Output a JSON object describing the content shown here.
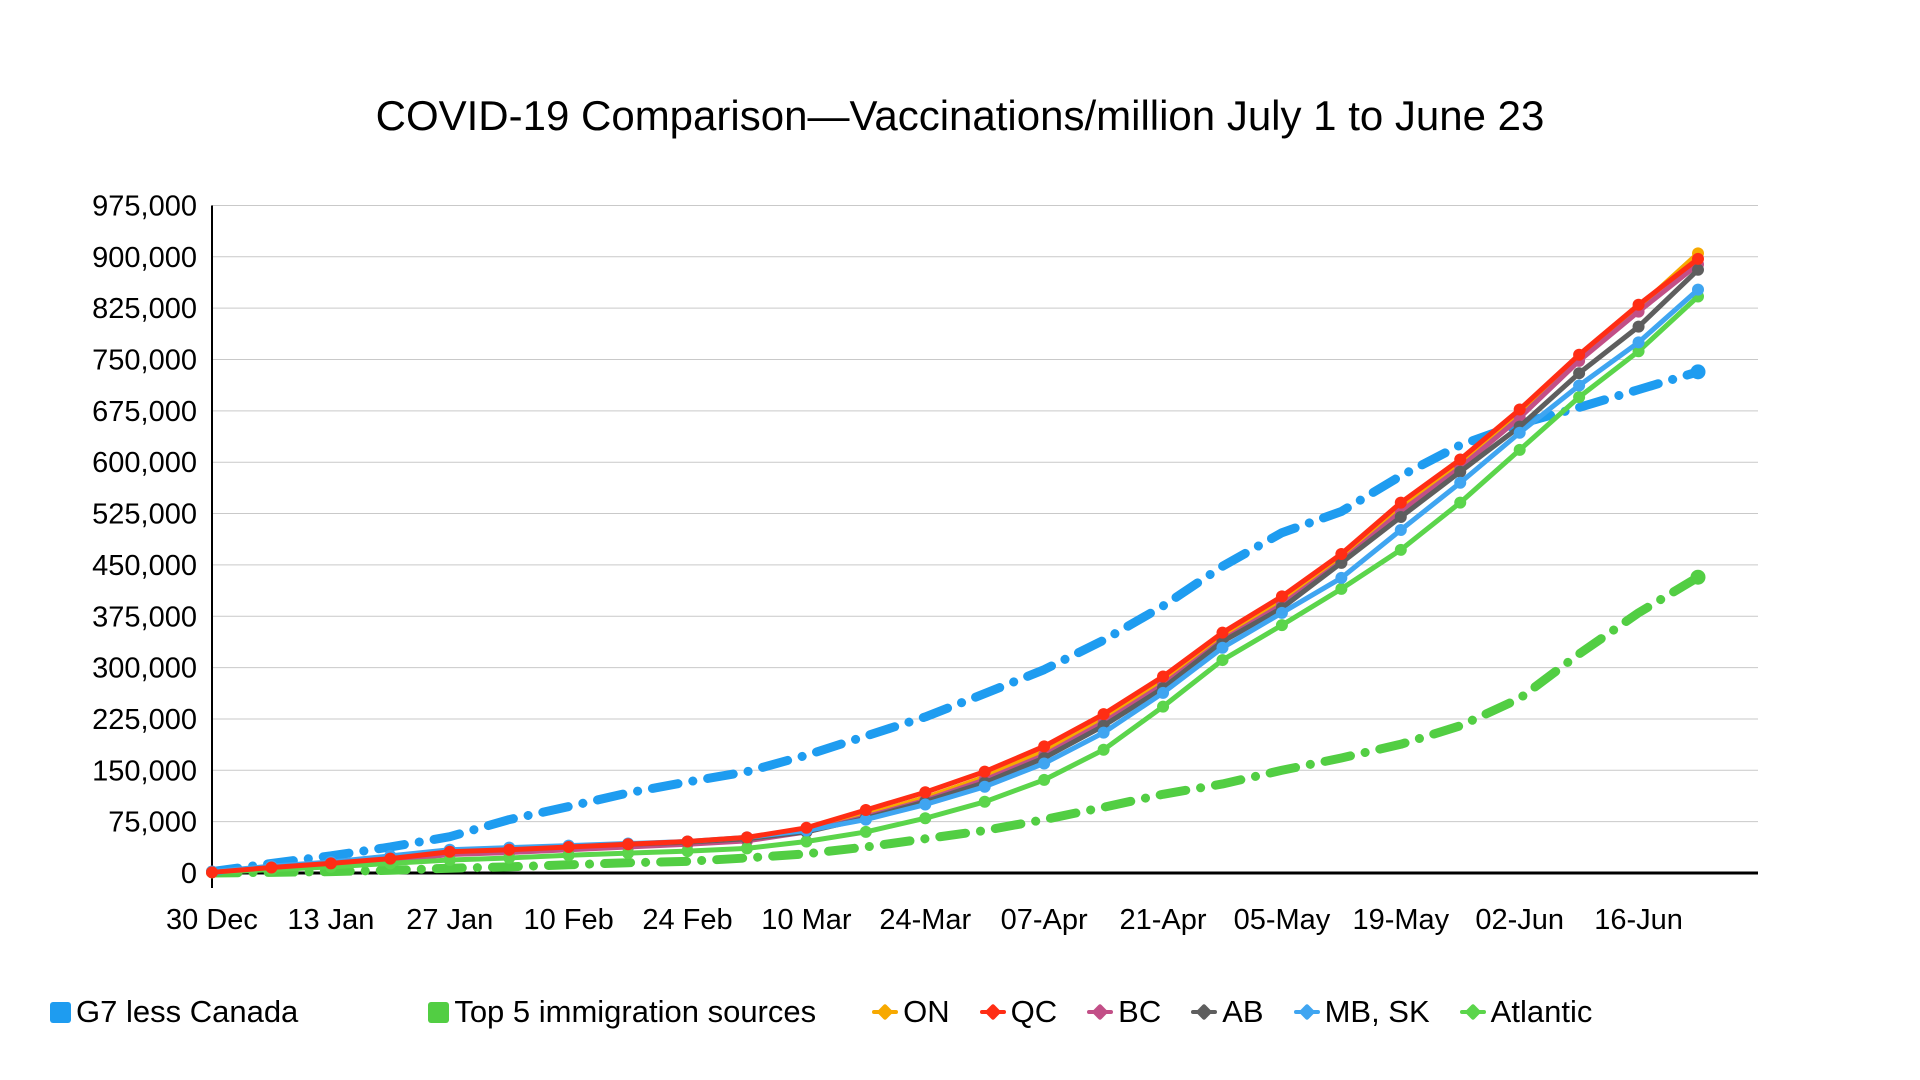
{
  "chart_data": {
    "type": "line",
    "title": "COVID-19 Comparison—Vaccinations/million July 1 to June 23",
    "grid": "horizontal",
    "legend_position": "bottom",
    "ylim": [
      0,
      975000
    ],
    "y_tick_step": 75000,
    "y_tick_labels": [
      "975,000",
      "900,000",
      "825,000",
      "750,000",
      "675,000",
      "600,000",
      "525,000",
      "450,000",
      "375,000",
      "300,000",
      "225,000",
      "150,000",
      "75,000",
      "0"
    ],
    "x_axis_tick_labels": [
      "30 Dec",
      "13 Jan",
      "27 Jan",
      "10 Feb",
      "24 Feb",
      "10 Mar",
      "24-Mar",
      "07-Apr",
      "21-Apr",
      "05-May",
      "19-May",
      "02-Jun",
      "16-Jun"
    ],
    "x_weeks": [
      "30 Dec",
      "6 Jan",
      "13 Jan",
      "20 Jan",
      "27 Jan",
      "3 Feb",
      "10 Feb",
      "17 Feb",
      "24 Feb",
      "3 Mar",
      "10 Mar",
      "17 Mar",
      "24 Mar",
      "31 Mar",
      "7 Apr",
      "14 Apr",
      "21 Apr",
      "28 Apr",
      "5 May",
      "12 May",
      "19 May",
      "26 May",
      "2 Jun",
      "9 Jun",
      "16 Jun",
      "23 Jun"
    ],
    "series": [
      {
        "name": "G7 less Canada",
        "color": "#1E9CF0",
        "style": "dashed",
        "swatch": "square",
        "z": 1,
        "values": [
          2000,
          14000,
          25000,
          38000,
          53000,
          78000,
          97000,
          117000,
          133000,
          148000,
          172000,
          200000,
          228000,
          262000,
          297000,
          340000,
          390000,
          448000,
          497000,
          528000,
          580000,
          625000,
          656000,
          680000,
          706000,
          732000
        ]
      },
      {
        "name": "Top 5 immigration sources",
        "color": "#52CE43",
        "style": "dashed",
        "swatch": "square",
        "z": 0,
        "values": [
          0,
          1000,
          2000,
          4000,
          7000,
          9000,
          12000,
          15000,
          17000,
          22000,
          28000,
          38000,
          50000,
          62000,
          78000,
          96000,
          115000,
          130000,
          150000,
          168000,
          188000,
          215000,
          255000,
          320000,
          380000,
          432000
        ]
      },
      {
        "name": "ON",
        "color": "#F7A900",
        "style": "solid",
        "swatch": "diamond",
        "z": 2,
        "values": [
          1000,
          8000,
          13000,
          20000,
          29000,
          32000,
          36000,
          40000,
          44000,
          49000,
          62000,
          85000,
          110000,
          140000,
          178000,
          226000,
          280000,
          344000,
          396000,
          458000,
          532000,
          597000,
          670000,
          752000,
          826000,
          905000
        ]
      },
      {
        "name": "QC",
        "color": "#FF2D14",
        "style": "solid",
        "swatch": "diamond",
        "z": 7,
        "values": [
          1000,
          8000,
          14000,
          21000,
          31000,
          34000,
          38000,
          42000,
          46000,
          52000,
          66000,
          92000,
          118000,
          148000,
          185000,
          232000,
          287000,
          351000,
          404000,
          466000,
          541000,
          604000,
          677000,
          757000,
          830000,
          897000
        ]
      },
      {
        "name": "BC",
        "color": "#C24F87",
        "style": "solid",
        "swatch": "diamond",
        "z": 3,
        "values": [
          1000,
          7000,
          12000,
          18000,
          27000,
          30000,
          34000,
          38000,
          42000,
          47000,
          60000,
          82000,
          106000,
          136000,
          172000,
          220000,
          275000,
          340000,
          392000,
          455000,
          528000,
          592000,
          665000,
          748000,
          820000,
          889000
        ]
      },
      {
        "name": "AB",
        "color": "#5E5E5E",
        "style": "solid",
        "swatch": "diamond",
        "z": 4,
        "values": [
          2000,
          9000,
          15000,
          23000,
          33000,
          36000,
          39000,
          42000,
          45000,
          50000,
          60000,
          80000,
          104000,
          132000,
          168000,
          215000,
          270000,
          338000,
          387000,
          453000,
          520000,
          586000,
          652000,
          730000,
          798000,
          881000
        ]
      },
      {
        "name": "MB, SK",
        "color": "#3FA5F1",
        "style": "solid",
        "swatch": "diamond",
        "z": 6,
        "values": [
          2000,
          10000,
          16000,
          25000,
          34000,
          37000,
          40000,
          43000,
          46000,
          52000,
          62000,
          78000,
          100000,
          126000,
          160000,
          205000,
          263000,
          329000,
          380000,
          431000,
          501000,
          570000,
          643000,
          712000,
          775000,
          852000
        ]
      },
      {
        "name": "Atlantic",
        "color": "#5BD54B",
        "style": "solid",
        "swatch": "diamond",
        "z": 5,
        "values": [
          1000,
          5000,
          9000,
          14000,
          19000,
          22000,
          26000,
          29000,
          32000,
          36000,
          46000,
          60000,
          80000,
          104000,
          136000,
          180000,
          243000,
          311000,
          362000,
          415000,
          472000,
          541000,
          618000,
          695000,
          762000,
          842000
        ]
      }
    ]
  }
}
